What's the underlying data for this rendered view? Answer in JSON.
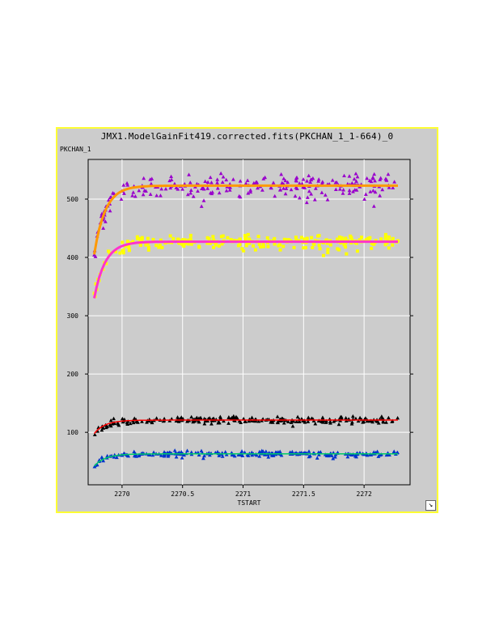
{
  "window": {
    "title": "JMX1.ModelGainFit419.corrected.fits(PKCHAN_1_1-664)_0",
    "resize_icon": "resize-corner-icon"
  },
  "colors": {
    "frame_border": "#ffff33",
    "background": "#cccccc",
    "grid": "#ffffff"
  },
  "chart_data": {
    "type": "scatter",
    "title": "JMX1.ModelGainFit419.corrected.fits(PKCHAN_1_1-664)_0",
    "xlabel": "TSTART",
    "ylabel": "PKCHAN_1",
    "xlim": [
      2269.72,
      2272.38
    ],
    "ylim": [
      10,
      568
    ],
    "xticks": [
      2270,
      2270.5,
      2271,
      2271.5,
      2272
    ],
    "xtick_labels": [
      "2270",
      "2270.5",
      "2271",
      "2271.5",
      "2272"
    ],
    "yticks": [
      100,
      200,
      300,
      400,
      500
    ],
    "ytick_labels": [
      "100",
      "200",
      "300",
      "400",
      "500"
    ],
    "grid": true,
    "legend": "none",
    "x_range": [
      2269.77,
      2272.28
    ],
    "series": [
      {
        "marker": "triangle",
        "color": "#9900cc",
        "fit_color": "#ff9900",
        "start": 405,
        "plateau": 523,
        "scatter": 12
      },
      {
        "marker": "square",
        "color": "#ffff00",
        "fit_color": "#ff33cc",
        "start": 330,
        "plateau": 427,
        "scatter": 8
      },
      {
        "marker": "triangle",
        "color": "#000000",
        "fit_color": "#ff0000",
        "start": 98,
        "plateau": 121,
        "scatter": 4
      },
      {
        "marker": "triangle",
        "color": "#0033cc",
        "fit_color": "#00cc66",
        "start": 42,
        "plateau": 63,
        "scatter": 3
      }
    ]
  }
}
